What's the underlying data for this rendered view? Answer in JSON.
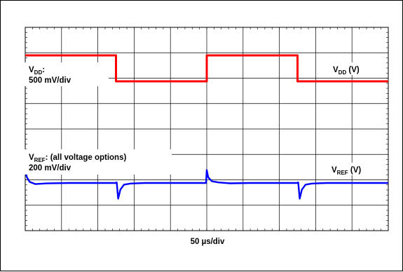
{
  "chart_data": {
    "type": "line",
    "title": "",
    "xlabel": "50 µs/div",
    "ylabel": "",
    "grid": true,
    "xlim": [
      0,
      500
    ],
    "x_units": "µs",
    "traces": [
      {
        "id": "vdd",
        "color": "#ff0000",
        "label_main": "V",
        "label_sub": "DD",
        "label_rest": ":",
        "scale": "500 mV/div",
        "right_label_main": "V",
        "right_label_sub": "DD",
        "right_label_rest": " (V)",
        "points": [
          [
            0,
            1
          ],
          [
            125,
            1
          ],
          [
            125,
            0
          ],
          [
            250,
            0
          ],
          [
            250,
            1
          ],
          [
            375,
            1
          ],
          [
            375,
            0
          ],
          [
            500,
            0
          ]
        ]
      },
      {
        "id": "vref",
        "color": "#0000ff",
        "label_main": "V",
        "label_sub": "REF",
        "label_rest": ": (all voltage options)",
        "scale": "200 mV/div",
        "right_label_main": "V",
        "right_label_sub": "REF",
        "right_label_rest": " (V)",
        "points": [
          [
            0,
            1.35
          ],
          [
            2,
            0.55
          ],
          [
            6,
            0.1
          ],
          [
            14,
            -0.1
          ],
          [
            30,
            -0.04
          ],
          [
            60,
            0
          ],
          [
            124,
            0
          ],
          [
            126,
            0.05
          ],
          [
            128,
            -1.4
          ],
          [
            131,
            -0.6
          ],
          [
            136,
            -0.15
          ],
          [
            145,
            -0.05
          ],
          [
            165,
            0
          ],
          [
            249,
            0
          ],
          [
            250,
            1.15
          ],
          [
            252,
            0.5
          ],
          [
            257,
            0.15
          ],
          [
            266,
            0.05
          ],
          [
            282,
            -0.03
          ],
          [
            310,
            0
          ],
          [
            374,
            0
          ],
          [
            376,
            0.05
          ],
          [
            378,
            -1.4
          ],
          [
            381,
            -0.6
          ],
          [
            386,
            -0.15
          ],
          [
            395,
            -0.05
          ],
          [
            415,
            0
          ],
          [
            500,
            0
          ]
        ]
      }
    ]
  }
}
